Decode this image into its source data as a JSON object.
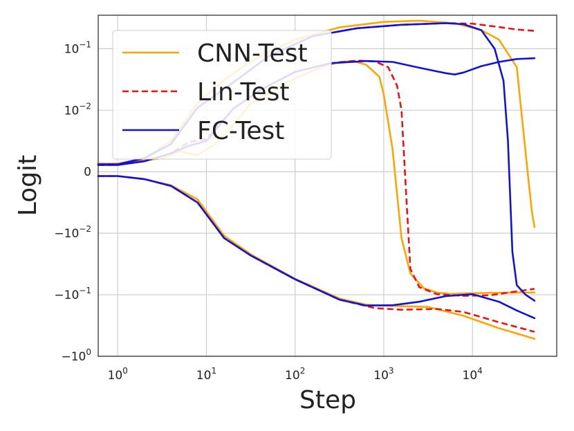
{
  "chart_data": {
    "type": "line",
    "title": "",
    "xlabel": "Step",
    "ylabel": "Logit",
    "xscale": "log",
    "yscale": "symlog",
    "xlim_log10": [
      -0.22,
      4.95
    ],
    "ylim": [
      -1,
      0.35
    ],
    "linthresh": 0.01,
    "grid": true,
    "legend_position": "upper-left",
    "x_ticks": [
      {
        "base": "10",
        "exp": "0",
        "value": 1
      },
      {
        "base": "10",
        "exp": "1",
        "value": 10
      },
      {
        "base": "10",
        "exp": "2",
        "value": 100
      },
      {
        "base": "10",
        "exp": "3",
        "value": 1000
      },
      {
        "base": "10",
        "exp": "4",
        "value": 10000
      }
    ],
    "y_ticks": [
      {
        "base": "10",
        "exp": "−1",
        "value": 0.1
      },
      {
        "base": "10",
        "exp": "−2",
        "value": 0.01
      },
      {
        "base": "",
        "exp": "",
        "text": "0",
        "value": 0
      },
      {
        "base": "−10",
        "exp": "−2",
        "value": -0.01
      },
      {
        "base": "−10",
        "exp": "−1",
        "value": -0.1
      },
      {
        "base": "−10",
        "exp": "0",
        "value": -1
      }
    ],
    "series": [
      {
        "name": "CNN-Test",
        "color": "#FFA500",
        "dash": "solid",
        "legend": true,
        "points": [
          [
            -0.22,
            0.0013
          ],
          [
            0,
            0.0013
          ],
          [
            0.5,
            0.0022
          ],
          [
            0.7,
            0.0033
          ],
          [
            0.9,
            0.0027
          ],
          [
            1.1,
            0.0045
          ],
          [
            1.3,
            0.0075
          ],
          [
            1.5,
            0.013
          ],
          [
            1.7,
            0.019
          ],
          [
            2,
            0.033
          ],
          [
            2.3,
            0.05
          ],
          [
            2.5,
            0.061
          ],
          [
            2.65,
            0.063
          ],
          [
            2.8,
            0.055
          ],
          [
            2.95,
            0.035
          ],
          [
            3.0,
            0.018
          ],
          [
            3.1,
            0.0035
          ],
          [
            3.2,
            -0.012
          ],
          [
            3.3,
            -0.045
          ],
          [
            3.45,
            -0.078
          ],
          [
            3.6,
            -0.092
          ],
          [
            3.75,
            -0.097
          ],
          [
            3.9,
            -0.095
          ],
          [
            4.2,
            -0.093
          ],
          [
            4.5,
            -0.092
          ],
          [
            4.7,
            -0.092
          ]
        ]
      },
      {
        "name": "CNN-Test",
        "color": "#FFA500",
        "dash": "solid",
        "legend": false,
        "points": [
          [
            -0.22,
            0.0013
          ],
          [
            0,
            0.0013
          ],
          [
            0.3,
            0.0022
          ],
          [
            0.6,
            0.005
          ],
          [
            0.9,
            0.013
          ],
          [
            1.2,
            0.031
          ],
          [
            1.5,
            0.062
          ],
          [
            2,
            0.14
          ],
          [
            2.5,
            0.222
          ],
          [
            3,
            0.272
          ],
          [
            3.4,
            0.285
          ],
          [
            3.8,
            0.26
          ],
          [
            4.1,
            0.2
          ],
          [
            4.3,
            0.14
          ],
          [
            4.5,
            0.05
          ],
          [
            4.6,
            0.003
          ],
          [
            4.67,
            -0.0065
          ],
          [
            4.7,
            -0.009
          ]
        ]
      },
      {
        "name": "CNN-Test",
        "color": "#FFA500",
        "dash": "solid",
        "legend": false,
        "points": [
          [
            -0.22,
            -0.0007
          ],
          [
            0,
            -0.0007
          ],
          [
            0.3,
            -0.0012
          ],
          [
            0.6,
            -0.0022
          ],
          [
            0.9,
            -0.0045
          ],
          [
            1.2,
            -0.011
          ],
          [
            1.5,
            -0.022
          ],
          [
            2,
            -0.055
          ],
          [
            2.5,
            -0.115
          ],
          [
            2.8,
            -0.145
          ],
          [
            3.1,
            -0.152
          ],
          [
            3.5,
            -0.158
          ],
          [
            3.9,
            -0.22
          ],
          [
            4.3,
            -0.35
          ],
          [
            4.7,
            -0.52
          ]
        ]
      },
      {
        "name": "Lin-Test",
        "color": "#EE1111",
        "dash": "dashed",
        "legend": true,
        "points": [
          [
            -0.22,
            0.0011
          ],
          [
            0,
            0.0011
          ],
          [
            0.3,
            0.0017
          ],
          [
            0.6,
            0.003
          ],
          [
            0.8,
            0.0048
          ],
          [
            1.0,
            0.0053
          ],
          [
            1.3,
            0.0105
          ],
          [
            1.6,
            0.021
          ],
          [
            2.0,
            0.042
          ],
          [
            2.4,
            0.058
          ],
          [
            2.7,
            0.064
          ],
          [
            2.9,
            0.062
          ],
          [
            3.05,
            0.05
          ],
          [
            3.15,
            0.025
          ],
          [
            3.2,
            0.01
          ],
          [
            3.25,
            -0.003
          ],
          [
            3.3,
            -0.038
          ],
          [
            3.4,
            -0.075
          ],
          [
            3.6,
            -0.098
          ],
          [
            3.9,
            -0.104
          ],
          [
            4.2,
            -0.102
          ],
          [
            4.5,
            -0.088
          ],
          [
            4.7,
            -0.08
          ]
        ]
      },
      {
        "name": "Lin-Test",
        "color": "#EE1111",
        "dash": "dashed",
        "legend": false,
        "points": [
          [
            -0.22,
            0.0012
          ],
          [
            0,
            0.0012
          ],
          [
            0.3,
            0.0022
          ],
          [
            0.6,
            0.0045
          ],
          [
            0.9,
            0.011
          ],
          [
            1.3,
            0.028
          ],
          [
            1.7,
            0.075
          ],
          [
            2.2,
            0.16
          ],
          [
            2.7,
            0.215
          ],
          [
            3.2,
            0.245
          ],
          [
            3.7,
            0.26
          ],
          [
            4.0,
            0.255
          ],
          [
            4.3,
            0.225
          ],
          [
            4.5,
            0.205
          ],
          [
            4.7,
            0.195
          ]
        ]
      },
      {
        "name": "Lin-Test",
        "color": "#EE1111",
        "dash": "dashed",
        "legend": false,
        "points": [
          [
            -0.22,
            -0.0007
          ],
          [
            0,
            -0.0007
          ],
          [
            0.3,
            -0.0012
          ],
          [
            0.6,
            -0.0023
          ],
          [
            0.9,
            -0.005
          ],
          [
            1.2,
            -0.012
          ],
          [
            1.5,
            -0.023
          ],
          [
            2,
            -0.056
          ],
          [
            2.5,
            -0.12
          ],
          [
            2.9,
            -0.165
          ],
          [
            3.2,
            -0.175
          ],
          [
            3.6,
            -0.17
          ],
          [
            3.9,
            -0.19
          ],
          [
            4.3,
            -0.28
          ],
          [
            4.7,
            -0.4
          ]
        ]
      },
      {
        "name": "FC-Test",
        "color": "#1111DD",
        "dash": "solid",
        "legend": true,
        "points": [
          [
            -0.22,
            0.0011
          ],
          [
            0,
            0.0011
          ],
          [
            0.3,
            0.0017
          ],
          [
            0.6,
            0.003
          ],
          [
            0.8,
            0.0042
          ],
          [
            1.0,
            0.005
          ],
          [
            1.3,
            0.0105
          ],
          [
            1.6,
            0.021
          ],
          [
            2.0,
            0.042
          ],
          [
            2.4,
            0.058
          ],
          [
            2.8,
            0.063
          ],
          [
            3.1,
            0.061
          ],
          [
            3.4,
            0.049
          ],
          [
            3.7,
            0.04
          ],
          [
            3.8,
            0.038
          ],
          [
            3.9,
            0.041
          ],
          [
            4.1,
            0.052
          ],
          [
            4.3,
            0.061
          ],
          [
            4.5,
            0.068
          ],
          [
            4.7,
            0.07
          ]
        ]
      },
      {
        "name": "FC-Test",
        "color": "#1111DD",
        "dash": "solid",
        "legend": false,
        "points": [
          [
            -0.22,
            0.0012
          ],
          [
            0,
            0.0012
          ],
          [
            0.3,
            0.0022
          ],
          [
            0.6,
            0.0045
          ],
          [
            0.9,
            0.011
          ],
          [
            1.3,
            0.028
          ],
          [
            1.7,
            0.075
          ],
          [
            2.2,
            0.16
          ],
          [
            2.7,
            0.215
          ],
          [
            3.2,
            0.245
          ],
          [
            3.7,
            0.26
          ],
          [
            3.9,
            0.25
          ],
          [
            4.1,
            0.2
          ],
          [
            4.25,
            0.1
          ],
          [
            4.35,
            0.03
          ],
          [
            4.4,
            0.005
          ],
          [
            4.45,
            -0.02
          ],
          [
            4.5,
            -0.07
          ],
          [
            4.6,
            -0.1
          ],
          [
            4.7,
            -0.125
          ]
        ]
      },
      {
        "name": "FC-Test",
        "color": "#1111DD",
        "dash": "solid",
        "legend": false,
        "points": [
          [
            -0.22,
            -0.0007
          ],
          [
            0,
            -0.0007
          ],
          [
            0.3,
            -0.0012
          ],
          [
            0.6,
            -0.0023
          ],
          [
            0.9,
            -0.005
          ],
          [
            1.2,
            -0.012
          ],
          [
            1.5,
            -0.023
          ],
          [
            2,
            -0.056
          ],
          [
            2.5,
            -0.12
          ],
          [
            2.8,
            -0.15
          ],
          [
            3.1,
            -0.148
          ],
          [
            3.4,
            -0.13
          ],
          [
            3.7,
            -0.105
          ],
          [
            4.0,
            -0.098
          ],
          [
            4.3,
            -0.13
          ],
          [
            4.5,
            -0.18
          ],
          [
            4.7,
            -0.24
          ]
        ]
      }
    ]
  }
}
